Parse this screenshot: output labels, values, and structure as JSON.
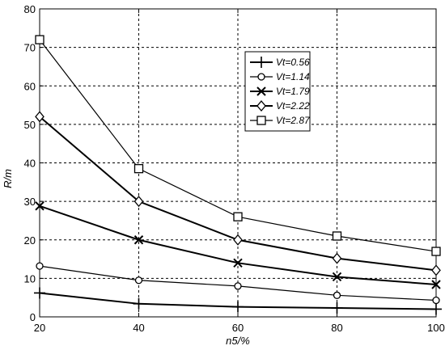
{
  "chart_data": {
    "type": "line",
    "title": "",
    "xlabel": "n5/%",
    "ylabel": "R/m",
    "x": [
      20,
      40,
      60,
      80,
      100
    ],
    "xlim": [
      20,
      100
    ],
    "ylim": [
      0,
      80
    ],
    "xticks": [
      20,
      40,
      60,
      80,
      100
    ],
    "yticks": [
      0,
      10,
      20,
      30,
      40,
      50,
      60,
      70,
      80
    ],
    "grid": true,
    "legend_position": "top-right",
    "series": [
      {
        "name": "Vt=0.56",
        "marker": "plus",
        "values": [
          6.2,
          3.4,
          2.6,
          2.3,
          2.0
        ]
      },
      {
        "name": "Vt=1.14",
        "marker": "circle",
        "values": [
          13.2,
          9.5,
          8.0,
          5.6,
          4.3
        ]
      },
      {
        "name": "Vt=1.79",
        "marker": "x",
        "values": [
          28.8,
          20.0,
          14.0,
          10.4,
          8.4
        ]
      },
      {
        "name": "Vt=2.22",
        "marker": "diamond",
        "values": [
          52.0,
          30.0,
          20.0,
          15.2,
          12.1
        ]
      },
      {
        "name": "Vt=2.87",
        "marker": "square",
        "values": [
          72.0,
          38.5,
          26.0,
          21.0,
          17.0
        ]
      }
    ]
  }
}
